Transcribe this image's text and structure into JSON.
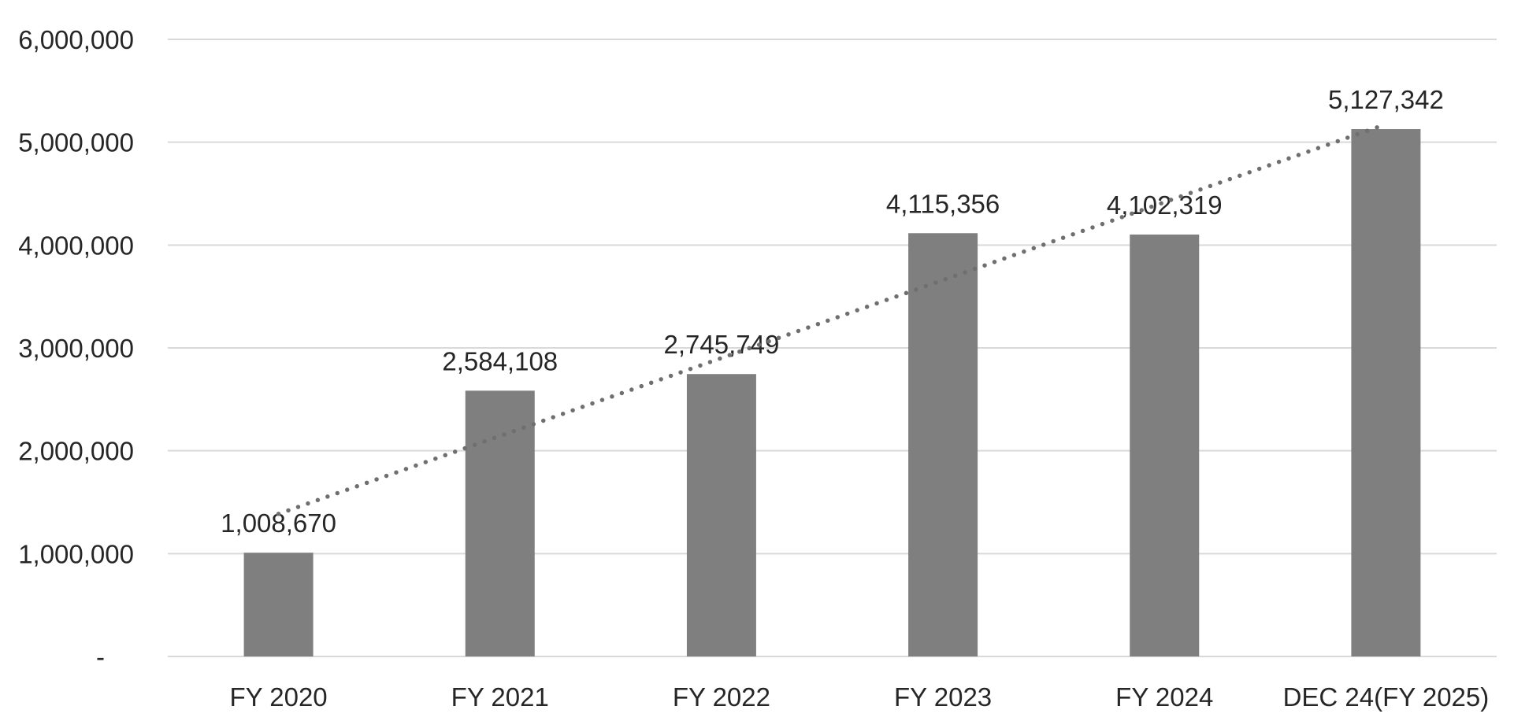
{
  "chart_data": {
    "type": "bar",
    "title": "",
    "categories": [
      "FY 2020",
      "FY 2021",
      "FY 2022",
      "FY 2023",
      "FY 2024",
      "DEC 24(FY 2025)"
    ],
    "series": [
      {
        "name": "value",
        "values": [
          1008670,
          2584108,
          2745749,
          4115356,
          4102319,
          5127342
        ]
      }
    ],
    "data_labels": [
      "1,008,670",
      "2,584,108",
      "2,745,749",
      "4,115,356",
      "4,102,319",
      "5,127,342"
    ],
    "y_axis": {
      "min": 0,
      "max": 6000000,
      "step": 1000000,
      "tick_labels": [
        "6,000,000",
        "5,000,000",
        "4,000,000",
        "3,000,000",
        "2,000,000",
        "1,000,000",
        "-"
      ]
    },
    "xlabel": "",
    "ylabel": "",
    "legend": "none",
    "grid": "horizontal",
    "trendline": {
      "type": "linear",
      "style": "dotted",
      "series": "value"
    },
    "colors": {
      "bar": "#7f7f7f",
      "trendline": "#6f6f6f",
      "gridline": "#d9d9d9",
      "text": "#262626",
      "background": "#ffffff"
    }
  }
}
